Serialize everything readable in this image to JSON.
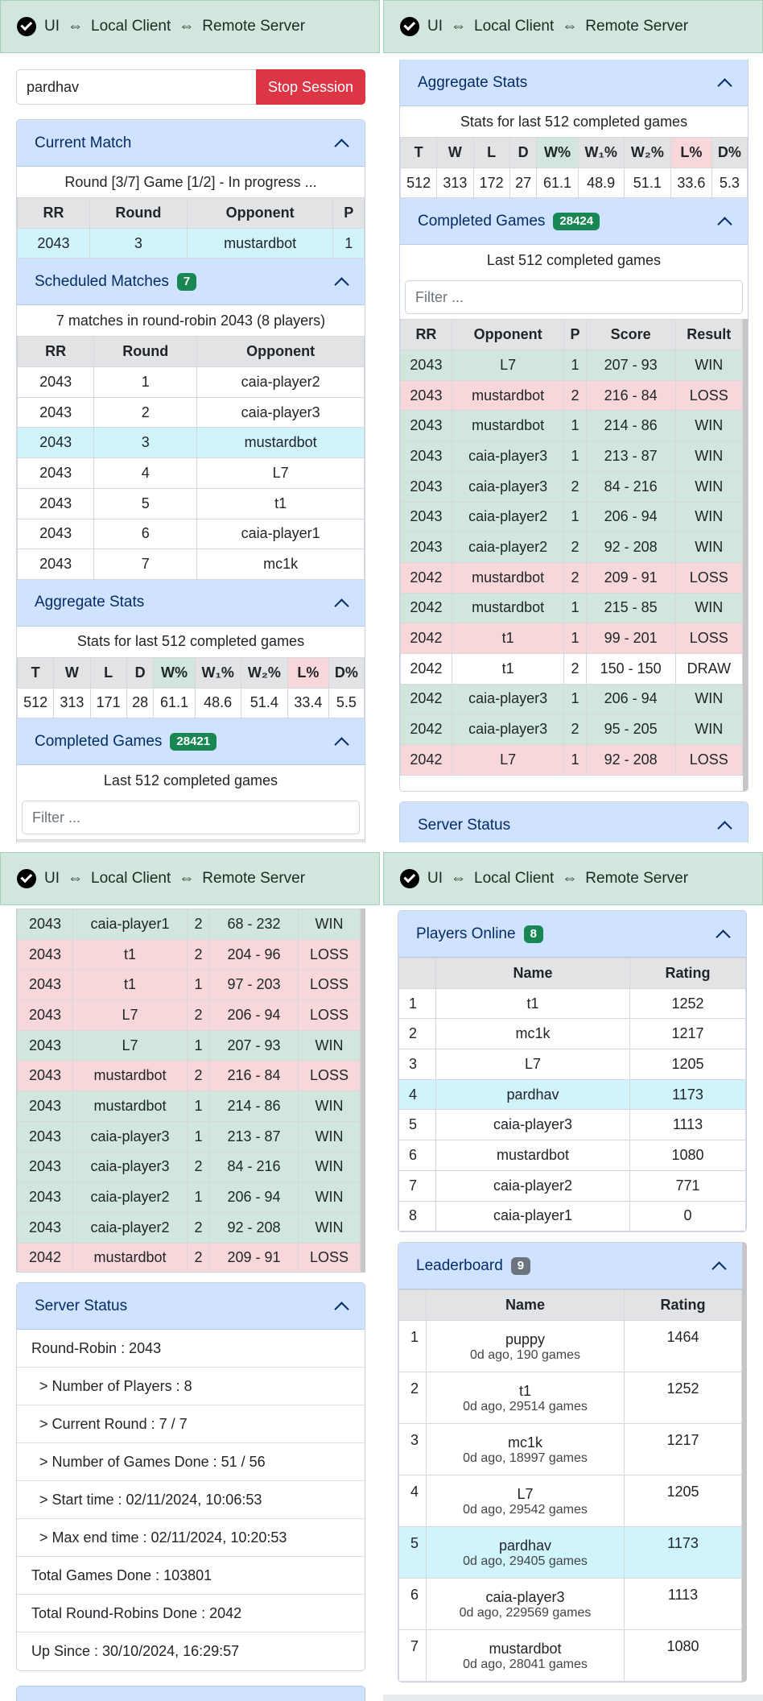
{
  "topbar": {
    "ui": "UI",
    "arrow": "⇔",
    "local": "Local Client",
    "remote": "Remote Server"
  },
  "session": {
    "user_value": "pardhav",
    "stop_label": "Stop Session"
  },
  "current_match": {
    "title": "Current Match",
    "status": "Round [3/7] Game [1/2] - In progress ...",
    "headers": [
      "RR",
      "Round",
      "Opponent",
      "P"
    ],
    "row": [
      "2043",
      "3",
      "mustardbot",
      "1"
    ]
  },
  "scheduled": {
    "title": "Scheduled Matches",
    "count": "7",
    "summary": "7 matches in round-robin 2043 (8 players)",
    "headers": [
      "RR",
      "Round",
      "Opponent"
    ],
    "rows": [
      [
        "2043",
        "1",
        "caia-player2"
      ],
      [
        "2043",
        "2",
        "caia-player3"
      ],
      [
        "2043",
        "3",
        "mustardbot"
      ],
      [
        "2043",
        "4",
        "L7"
      ],
      [
        "2043",
        "5",
        "t1"
      ],
      [
        "2043",
        "6",
        "caia-player1"
      ],
      [
        "2043",
        "7",
        "mc1k"
      ]
    ]
  },
  "aggregate_a": {
    "title": "Aggregate Stats",
    "summary": "Stats for last 512 completed games",
    "headers": [
      "T",
      "W",
      "L",
      "D",
      "W%",
      "W₁%",
      "W₂%",
      "L%",
      "D%"
    ],
    "values": [
      "512",
      "313",
      "171",
      "28",
      "61.1",
      "48.6",
      "51.4",
      "33.4",
      "5.5"
    ]
  },
  "aggregate_b": {
    "title": "Aggregate Stats",
    "summary": "Stats for last 512 completed games",
    "headers": [
      "T",
      "W",
      "L",
      "D",
      "W%",
      "W₁%",
      "W₂%",
      "L%",
      "D%"
    ],
    "values": [
      "512",
      "313",
      "172",
      "27",
      "61.1",
      "48.9",
      "51.1",
      "33.6",
      "5.3"
    ]
  },
  "completed_a": {
    "title": "Completed Games",
    "count": "28421",
    "summary": "Last 512 completed games",
    "filter_placeholder": "Filter ..."
  },
  "completed_b": {
    "title": "Completed Games",
    "count": "28424",
    "summary": "Last 512 completed games",
    "filter_placeholder": "Filter ...",
    "headers": [
      "RR",
      "Opponent",
      "P",
      "Score",
      "Result"
    ],
    "rows": [
      [
        "2043",
        "L7",
        "1",
        "207 - 93",
        "WIN"
      ],
      [
        "2043",
        "mustardbot",
        "2",
        "216 - 84",
        "LOSS"
      ],
      [
        "2043",
        "mustardbot",
        "1",
        "214 - 86",
        "WIN"
      ],
      [
        "2043",
        "caia-player3",
        "1",
        "213 - 87",
        "WIN"
      ],
      [
        "2043",
        "caia-player3",
        "2",
        "84 - 216",
        "WIN"
      ],
      [
        "2043",
        "caia-player2",
        "1",
        "206 - 94",
        "WIN"
      ],
      [
        "2043",
        "caia-player2",
        "2",
        "92 - 208",
        "WIN"
      ],
      [
        "2042",
        "mustardbot",
        "2",
        "209 - 91",
        "LOSS"
      ],
      [
        "2042",
        "mustardbot",
        "1",
        "215 - 85",
        "WIN"
      ],
      [
        "2042",
        "t1",
        "1",
        "99 - 201",
        "LOSS"
      ],
      [
        "2042",
        "t1",
        "2",
        "150 - 150",
        "DRAW"
      ],
      [
        "2042",
        "caia-player3",
        "1",
        "206 - 94",
        "WIN"
      ],
      [
        "2042",
        "caia-player3",
        "2",
        "95 - 205",
        "WIN"
      ],
      [
        "2042",
        "L7",
        "1",
        "92 - 208",
        "LOSS"
      ]
    ]
  },
  "completed_c": {
    "rows": [
      [
        "2043",
        "caia-player1",
        "2",
        "68 - 232",
        "WIN"
      ],
      [
        "2043",
        "t1",
        "2",
        "204 - 96",
        "LOSS"
      ],
      [
        "2043",
        "t1",
        "1",
        "97 - 203",
        "LOSS"
      ],
      [
        "2043",
        "L7",
        "2",
        "206 - 94",
        "LOSS"
      ],
      [
        "2043",
        "L7",
        "1",
        "207 - 93",
        "WIN"
      ],
      [
        "2043",
        "mustardbot",
        "2",
        "216 - 84",
        "LOSS"
      ],
      [
        "2043",
        "mustardbot",
        "1",
        "214 - 86",
        "WIN"
      ],
      [
        "2043",
        "caia-player3",
        "1",
        "213 - 87",
        "WIN"
      ],
      [
        "2043",
        "caia-player3",
        "2",
        "84 - 216",
        "WIN"
      ],
      [
        "2043",
        "caia-player2",
        "1",
        "206 - 94",
        "WIN"
      ],
      [
        "2043",
        "caia-player2",
        "2",
        "92 - 208",
        "WIN"
      ],
      [
        "2042",
        "mustardbot",
        "2",
        "209 - 91",
        "LOSS"
      ]
    ]
  },
  "server_status": {
    "title": "Server Status",
    "round_robin": "Round-Robin : 2043",
    "players": "> Number of Players : 8",
    "current_round": "> Current Round : 7 / 7",
    "games_done": "> Number of Games Done : 51 / 56",
    "start_time": "> Start time : 02/11/2024, 10:06:53",
    "max_end_time": "> Max end time : 02/11/2024, 10:20:53",
    "total_games": "Total Games Done : 103801",
    "total_rr": "Total Round-Robins Done : 2042",
    "up_since": "Up Since : 30/10/2024, 16:29:57"
  },
  "players_online": {
    "title": "Players Online",
    "count": "8",
    "headers": [
      "",
      "Name",
      "Rating"
    ],
    "rows": [
      [
        "1",
        "t1",
        "1252"
      ],
      [
        "2",
        "mc1k",
        "1217"
      ],
      [
        "3",
        "L7",
        "1205"
      ],
      [
        "4",
        "pardhav",
        "1173"
      ],
      [
        "5",
        "caia-player3",
        "1113"
      ],
      [
        "6",
        "mustardbot",
        "1080"
      ],
      [
        "7",
        "caia-player2",
        "771"
      ],
      [
        "8",
        "caia-player1",
        "0"
      ]
    ]
  },
  "leaderboard": {
    "title": "Leaderboard",
    "count": "9",
    "headers": [
      "",
      "Name",
      "Rating"
    ],
    "rows": [
      [
        "1",
        "puppy",
        "0d ago, 190 games",
        "1464"
      ],
      [
        "2",
        "t1",
        "0d ago, 29514 games",
        "1252"
      ],
      [
        "3",
        "mc1k",
        "0d ago, 18997 games",
        "1217"
      ],
      [
        "4",
        "L7",
        "0d ago, 29542 games",
        "1205"
      ],
      [
        "5",
        "pardhav",
        "0d ago, 29405 games",
        "1173"
      ],
      [
        "6",
        "caia-player3",
        "0d ago, 229569 games",
        "1113"
      ],
      [
        "7",
        "mustardbot",
        "0d ago, 28041 games",
        "1080"
      ]
    ]
  }
}
